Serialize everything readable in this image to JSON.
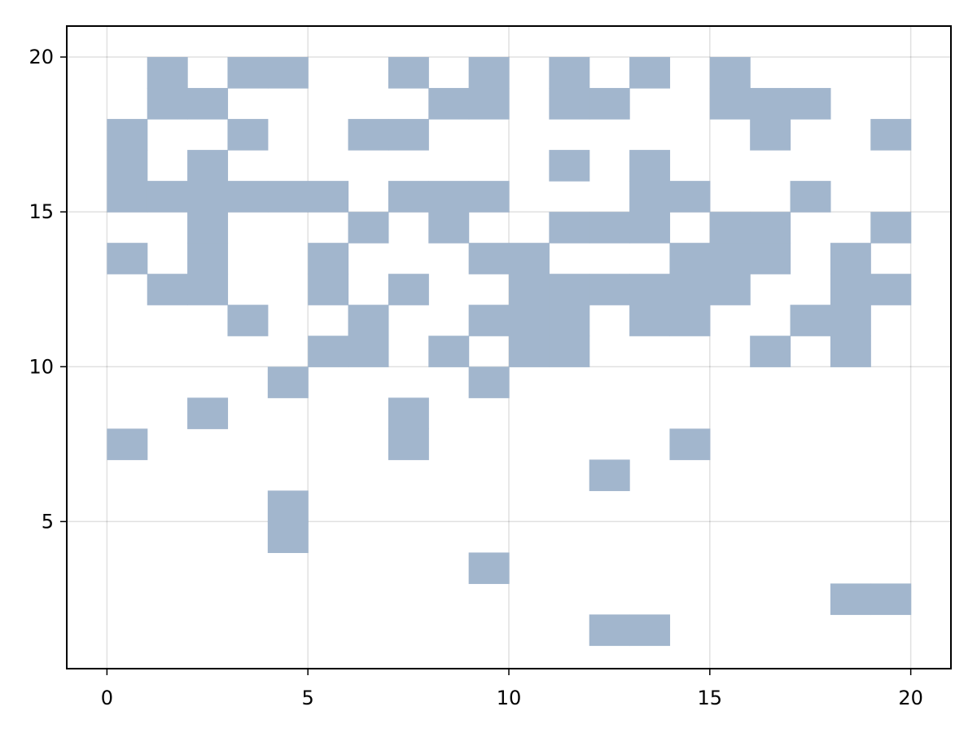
{
  "chart_data": {
    "type": "heatmap",
    "title": "",
    "xlabel": "",
    "ylabel": "",
    "xlim": [
      -1,
      21
    ],
    "ylim": [
      0.25,
      21
    ],
    "x_ticks": [
      "0",
      "5",
      "10",
      "15",
      "20"
    ],
    "y_ticks": [
      "5",
      "10",
      "15",
      "20"
    ],
    "x_tick_values": [
      0,
      5,
      10,
      15,
      20
    ],
    "y_tick_values": [
      5,
      10,
      15,
      20
    ],
    "grid": true,
    "cell_color": "#a2b6cd",
    "cell_size": 1,
    "cell_value": 1,
    "filled_cells": [
      [
        1,
        19
      ],
      [
        3,
        19
      ],
      [
        4,
        19
      ],
      [
        7,
        19
      ],
      [
        9,
        19
      ],
      [
        11,
        19
      ],
      [
        13,
        19
      ],
      [
        15,
        19
      ],
      [
        1,
        18
      ],
      [
        2,
        18
      ],
      [
        8,
        18
      ],
      [
        9,
        18
      ],
      [
        11,
        18
      ],
      [
        12,
        18
      ],
      [
        15,
        18
      ],
      [
        16,
        18
      ],
      [
        17,
        18
      ],
      [
        0,
        17
      ],
      [
        3,
        17
      ],
      [
        6,
        17
      ],
      [
        7,
        17
      ],
      [
        16,
        17
      ],
      [
        19,
        17
      ],
      [
        0,
        16
      ],
      [
        2,
        16
      ],
      [
        11,
        16
      ],
      [
        13,
        16
      ],
      [
        0,
        15
      ],
      [
        1,
        15
      ],
      [
        2,
        15
      ],
      [
        3,
        15
      ],
      [
        4,
        15
      ],
      [
        5,
        15
      ],
      [
        7,
        15
      ],
      [
        8,
        15
      ],
      [
        9,
        15
      ],
      [
        13,
        15
      ],
      [
        14,
        15
      ],
      [
        17,
        15
      ],
      [
        2,
        14
      ],
      [
        6,
        14
      ],
      [
        8,
        14
      ],
      [
        11,
        14
      ],
      [
        12,
        14
      ],
      [
        13,
        14
      ],
      [
        15,
        14
      ],
      [
        16,
        14
      ],
      [
        19,
        14
      ],
      [
        0,
        13
      ],
      [
        2,
        13
      ],
      [
        5,
        13
      ],
      [
        9,
        13
      ],
      [
        10,
        13
      ],
      [
        14,
        13
      ],
      [
        15,
        13
      ],
      [
        16,
        13
      ],
      [
        18,
        13
      ],
      [
        1,
        12
      ],
      [
        2,
        12
      ],
      [
        5,
        12
      ],
      [
        7,
        12
      ],
      [
        10,
        12
      ],
      [
        11,
        12
      ],
      [
        12,
        12
      ],
      [
        13,
        12
      ],
      [
        14,
        12
      ],
      [
        15,
        12
      ],
      [
        18,
        12
      ],
      [
        19,
        12
      ],
      [
        3,
        11
      ],
      [
        6,
        11
      ],
      [
        9,
        11
      ],
      [
        10,
        11
      ],
      [
        11,
        11
      ],
      [
        13,
        11
      ],
      [
        14,
        11
      ],
      [
        17,
        11
      ],
      [
        18,
        11
      ],
      [
        5,
        10
      ],
      [
        6,
        10
      ],
      [
        8,
        10
      ],
      [
        10,
        10
      ],
      [
        11,
        10
      ],
      [
        16,
        10
      ],
      [
        18,
        10
      ],
      [
        4,
        9
      ],
      [
        9,
        9
      ],
      [
        2,
        8
      ],
      [
        7,
        8
      ],
      [
        0,
        7
      ],
      [
        7,
        7
      ],
      [
        14,
        7
      ],
      [
        12,
        6
      ],
      [
        4,
        5
      ],
      [
        4,
        4
      ],
      [
        9,
        3
      ],
      [
        18,
        2
      ],
      [
        19,
        2
      ],
      [
        12,
        1
      ],
      [
        13,
        1
      ]
    ]
  }
}
